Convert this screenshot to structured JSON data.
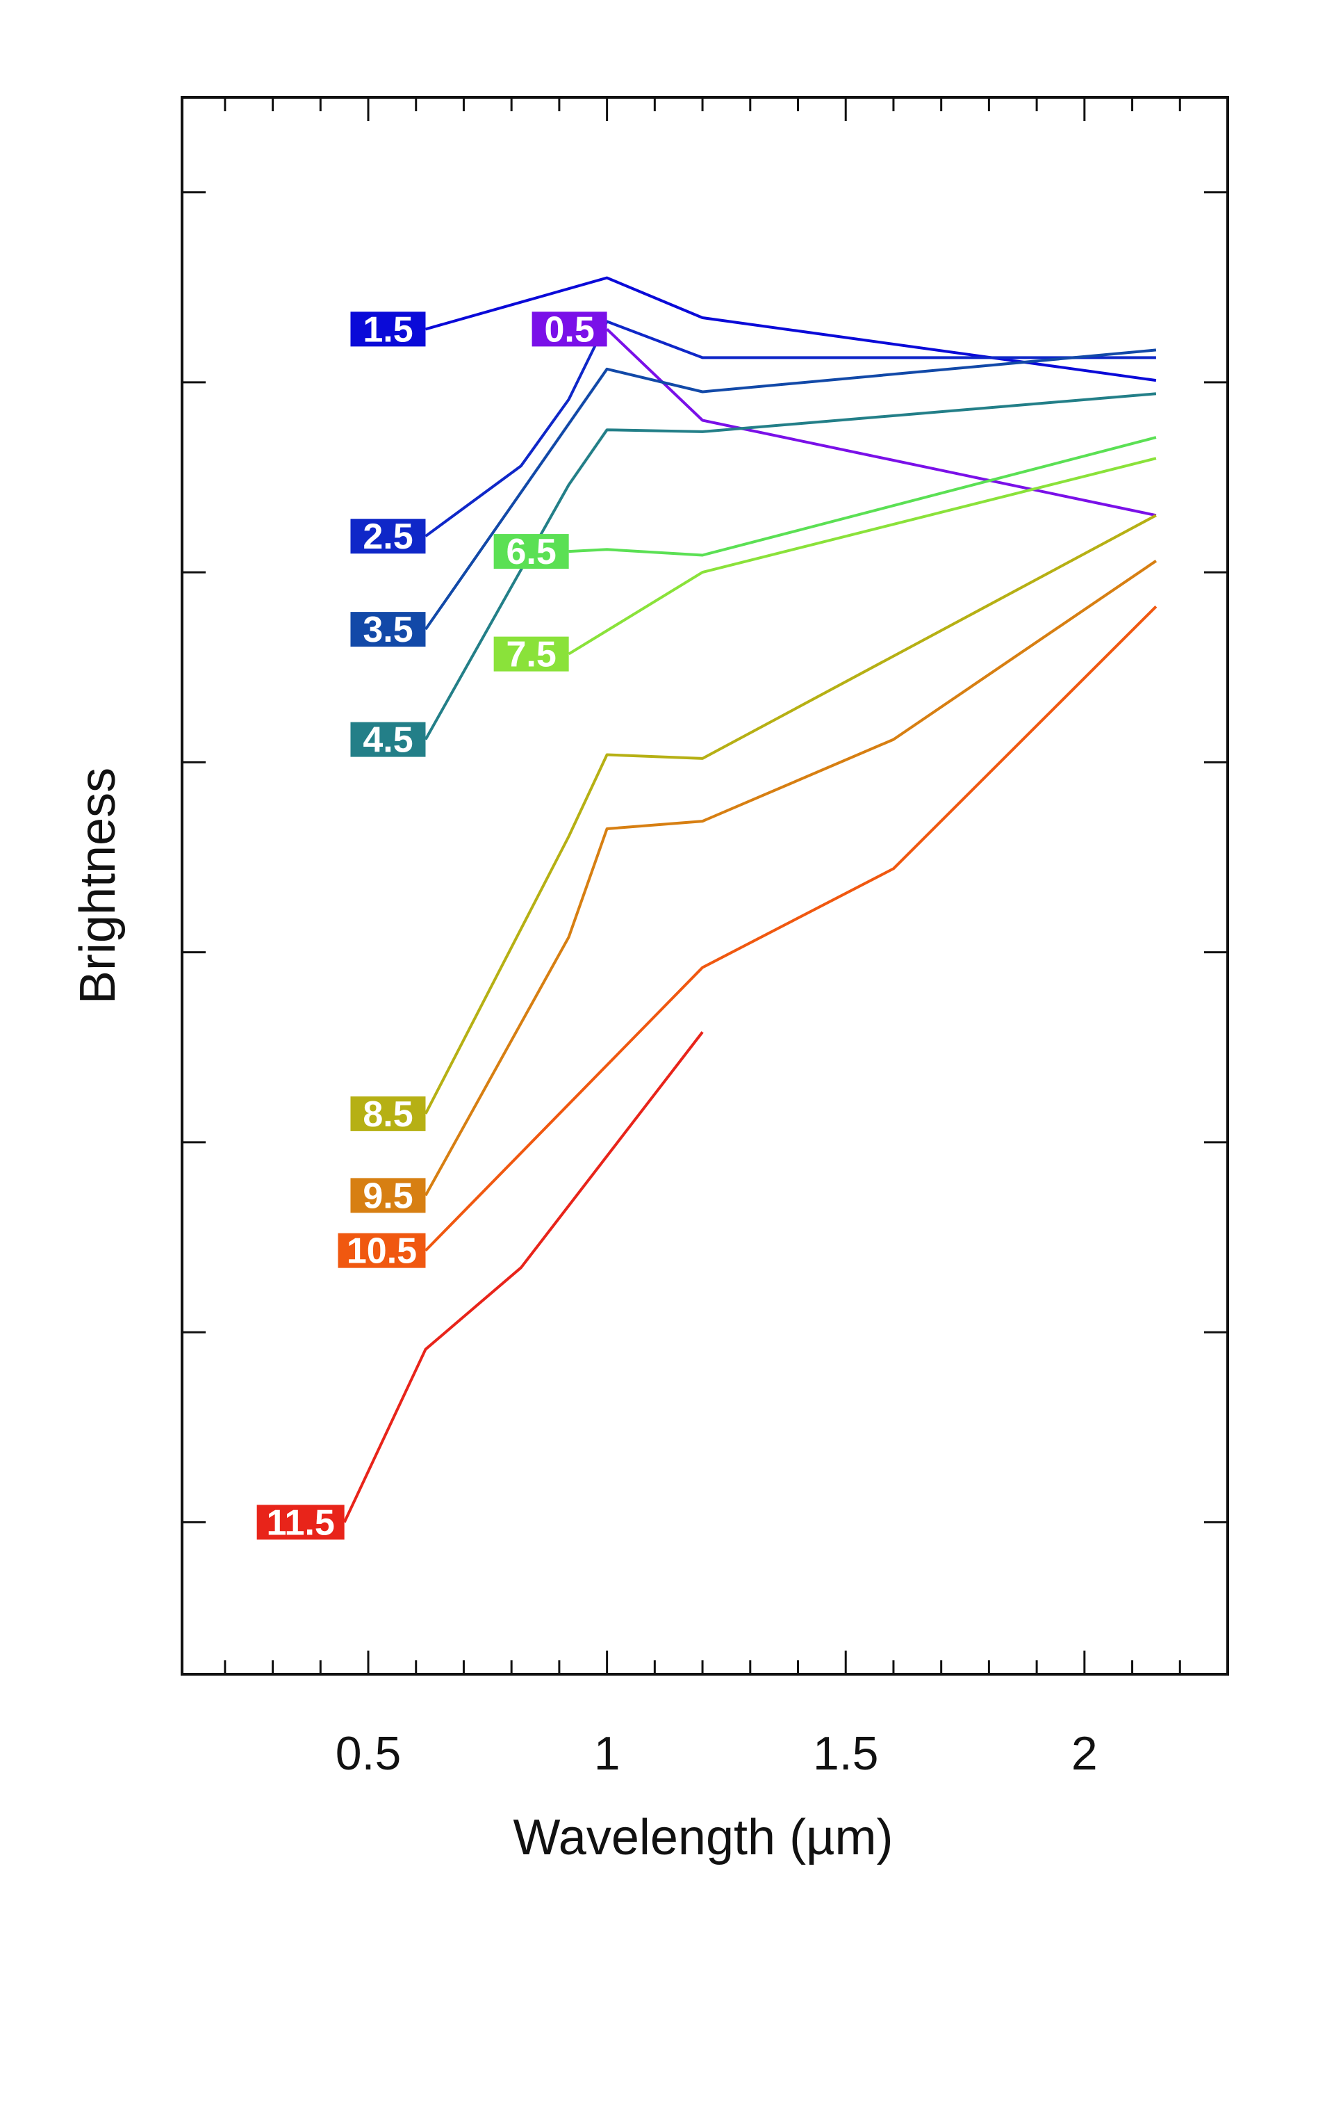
{
  "chart_data": {
    "type": "line",
    "title": "",
    "xlabel": "Wavelength (µm)",
    "ylabel": "Brightness",
    "xlim": [
      0.11,
      2.3
    ],
    "ylim": [
      0,
      8.3
    ],
    "x_ticks": [
      {
        "value": 0.5,
        "label": "0.5"
      },
      {
        "value": 1,
        "label": "1"
      },
      {
        "value": 1.5,
        "label": "1.5"
      },
      {
        "value": 2,
        "label": "2"
      }
    ],
    "x_minor_step": 0.1,
    "y_ticks": [
      0.8,
      1.8,
      2.8,
      3.8,
      4.8,
      5.8,
      6.8,
      7.8
    ],
    "y_tick_labels_shown": false,
    "grid": false,
    "legend": "inline labels at left end of each series",
    "series": [
      {
        "name": "0.5",
        "color": "#7a10e8",
        "x": [
          1.0,
          1.2,
          2.15
        ],
        "y": [
          7.08,
          6.6,
          6.1
        ]
      },
      {
        "name": "1.5",
        "color": "#0a0ad8",
        "x": [
          0.62,
          1.0,
          1.2,
          2.15
        ],
        "y": [
          7.08,
          7.35,
          7.14,
          6.81
        ]
      },
      {
        "name": "2.5",
        "color": "#0f27c8",
        "x": [
          0.62,
          0.82,
          0.92,
          1.0,
          1.2,
          2.15
        ],
        "y": [
          5.99,
          6.36,
          6.71,
          7.12,
          6.93,
          6.93
        ]
      },
      {
        "name": "3.5",
        "color": "#1249a8",
        "x": [
          0.62,
          1.0,
          1.2,
          2.15
        ],
        "y": [
          5.5,
          6.87,
          6.75,
          6.97
        ]
      },
      {
        "name": "4.5",
        "color": "#237f88",
        "x": [
          0.62,
          0.92,
          1.0,
          1.2,
          2.15
        ],
        "y": [
          4.92,
          6.26,
          6.55,
          6.54,
          6.74
        ]
      },
      {
        "name": "6.5",
        "color": "#5be054",
        "x": [
          0.92,
          1.0,
          1.2,
          2.15
        ],
        "y": [
          5.91,
          5.92,
          5.89,
          6.51
        ]
      },
      {
        "name": "7.5",
        "color": "#8ae23a",
        "x": [
          0.92,
          1.2,
          2.15
        ],
        "y": [
          5.37,
          5.8,
          6.4
        ]
      },
      {
        "name": "8.5",
        "color": "#b6b014",
        "x": [
          0.62,
          0.92,
          1.0,
          1.2,
          2.15
        ],
        "y": [
          2.95,
          4.41,
          4.84,
          4.82,
          6.1
        ]
      },
      {
        "name": "9.5",
        "color": "#d77f12",
        "x": [
          0.62,
          0.92,
          1.0,
          1.2,
          1.6,
          2.15
        ],
        "y": [
          2.52,
          3.88,
          4.45,
          4.49,
          4.92,
          5.86
        ]
      },
      {
        "name": "10.5",
        "color": "#f05810",
        "x": [
          0.62,
          1.2,
          1.6,
          2.15
        ],
        "y": [
          2.23,
          3.72,
          4.24,
          5.62
        ]
      },
      {
        "name": "11.5",
        "color": "#e8241a",
        "x": [
          0.45,
          0.62,
          0.82,
          1.2
        ],
        "y": [
          0.8,
          1.71,
          2.14,
          3.38
        ]
      }
    ]
  }
}
